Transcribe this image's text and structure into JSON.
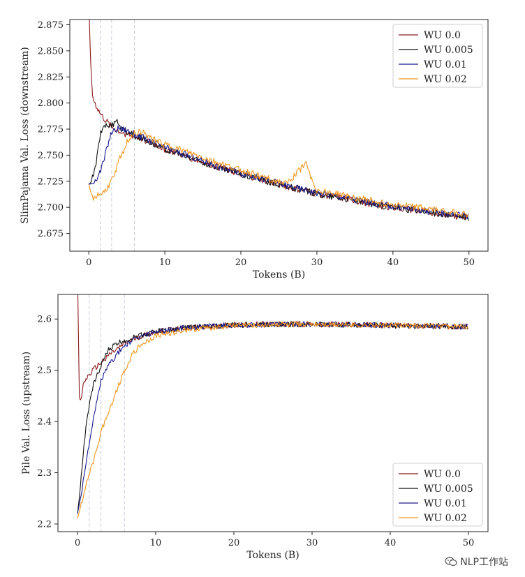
{
  "chart_data": [
    {
      "type": "line",
      "xlabel": "Tokens (B)",
      "ylabel": "SlimPajama Val. Loss (downstream)",
      "xlim": [
        -2.5,
        52.5
      ],
      "ylim": [
        2.658,
        2.88
      ],
      "xticks": [
        0,
        10,
        20,
        30,
        40,
        50
      ],
      "yticks": [
        2.675,
        2.7,
        2.725,
        2.75,
        2.775,
        2.8,
        2.825,
        2.85,
        2.875
      ],
      "ytick_labels": [
        "2.675",
        "2.700",
        "2.725",
        "2.750",
        "2.775",
        "2.800",
        "2.825",
        "2.850",
        "2.875"
      ],
      "warmup_end_lines": [
        1.5,
        3.0,
        6.0
      ],
      "legend_position": "top-right",
      "series": [
        {
          "name": "WU 0.0",
          "color": "#8b1a1a",
          "x": [
            0,
            0.2,
            0.5,
            1,
            1.5,
            2,
            3,
            4,
            5,
            6,
            8,
            10,
            14,
            18,
            22,
            26,
            30,
            34,
            38,
            42,
            46,
            50
          ],
          "y": [
            2.9,
            2.845,
            2.805,
            2.797,
            2.79,
            2.785,
            2.777,
            2.773,
            2.77,
            2.768,
            2.763,
            2.756,
            2.746,
            2.736,
            2.728,
            2.72,
            2.713,
            2.708,
            2.702,
            2.698,
            2.694,
            2.69
          ]
        },
        {
          "name": "WU 0.005",
          "color": "#111111",
          "x": [
            0,
            0.3,
            0.7,
            1,
            1.5,
            2,
            3,
            3.7,
            4,
            5,
            6,
            8,
            10,
            14,
            18,
            22,
            26,
            30,
            34,
            38,
            42,
            46,
            50
          ],
          "y": [
            2.722,
            2.724,
            2.733,
            2.745,
            2.77,
            2.78,
            2.777,
            2.786,
            2.776,
            2.773,
            2.769,
            2.763,
            2.756,
            2.746,
            2.736,
            2.728,
            2.72,
            2.713,
            2.708,
            2.702,
            2.698,
            2.694,
            2.69
          ]
        },
        {
          "name": "WU 0.01",
          "color": "#1a1a8c",
          "x": [
            0,
            0.5,
            1,
            1.5,
            2,
            2.5,
            3,
            4,
            5,
            6,
            8,
            10,
            14,
            18,
            22,
            26,
            30,
            34,
            38,
            42,
            46,
            50
          ],
          "y": [
            2.722,
            2.723,
            2.728,
            2.734,
            2.745,
            2.76,
            2.772,
            2.776,
            2.774,
            2.77,
            2.764,
            2.757,
            2.747,
            2.737,
            2.729,
            2.721,
            2.714,
            2.709,
            2.703,
            2.699,
            2.695,
            2.692
          ]
        },
        {
          "name": "WU 0.02",
          "color": "#f0961e",
          "x": [
            0,
            0.5,
            1,
            2,
            3,
            4,
            5,
            6,
            7,
            8,
            10,
            14,
            18,
            22,
            26,
            28.5,
            30,
            34,
            38,
            42,
            46,
            50
          ],
          "y": [
            2.722,
            2.708,
            2.711,
            2.714,
            2.725,
            2.745,
            2.762,
            2.772,
            2.772,
            2.767,
            2.76,
            2.75,
            2.74,
            2.731,
            2.722,
            2.742,
            2.716,
            2.711,
            2.705,
            2.701,
            2.697,
            2.693
          ]
        }
      ]
    },
    {
      "type": "line",
      "xlabel": "Tokens (B)",
      "ylabel": "Pile Val. Loss (upstream)",
      "xlim": [
        -2.5,
        52.5
      ],
      "ylim": [
        2.185,
        2.648
      ],
      "xticks": [
        0,
        10,
        20,
        30,
        40,
        50
      ],
      "yticks": [
        2.2,
        2.3,
        2.4,
        2.5,
        2.6
      ],
      "ytick_labels": [
        "2.2",
        "2.3",
        "2.4",
        "2.5",
        "2.6"
      ],
      "warmup_end_lines": [
        1.5,
        3.0,
        6.0
      ],
      "legend_position": "bottom-right",
      "series": [
        {
          "name": "WU 0.0",
          "color": "#8b1a1a",
          "x": [
            0,
            0.1,
            0.2,
            0.4,
            0.8,
            1.2,
            2,
            3,
            4,
            5,
            6,
            8,
            10,
            14,
            18,
            22,
            26,
            30,
            34,
            38,
            42,
            46,
            50
          ],
          "y": [
            2.7,
            2.6,
            2.45,
            2.44,
            2.475,
            2.485,
            2.5,
            2.515,
            2.53,
            2.54,
            2.552,
            2.566,
            2.575,
            2.583,
            2.587,
            2.589,
            2.59,
            2.59,
            2.589,
            2.588,
            2.587,
            2.586,
            2.585
          ]
        },
        {
          "name": "WU 0.005",
          "color": "#111111",
          "x": [
            0,
            0.3,
            0.8,
            1.2,
            1.5,
            2,
            2.5,
            3,
            4,
            5,
            6,
            8,
            10,
            14,
            18,
            22,
            26,
            30,
            34,
            38,
            42,
            46,
            50
          ],
          "y": [
            2.22,
            2.26,
            2.35,
            2.4,
            2.43,
            2.47,
            2.49,
            2.51,
            2.54,
            2.552,
            2.558,
            2.568,
            2.576,
            2.583,
            2.587,
            2.589,
            2.59,
            2.59,
            2.589,
            2.588,
            2.587,
            2.586,
            2.585
          ]
        },
        {
          "name": "WU 0.01",
          "color": "#1a1a8c",
          "x": [
            0,
            0.5,
            1,
            1.5,
            2,
            3,
            4,
            5,
            6,
            8,
            10,
            14,
            18,
            22,
            26,
            30,
            34,
            38,
            42,
            46,
            50
          ],
          "y": [
            2.22,
            2.26,
            2.31,
            2.36,
            2.4,
            2.48,
            2.51,
            2.53,
            2.548,
            2.565,
            2.575,
            2.583,
            2.587,
            2.589,
            2.59,
            2.59,
            2.589,
            2.588,
            2.587,
            2.586,
            2.585
          ]
        },
        {
          "name": "WU 0.02",
          "color": "#f0961e",
          "x": [
            0,
            0.5,
            1,
            2,
            3,
            4,
            5,
            6,
            7,
            8,
            10,
            14,
            18,
            22,
            26,
            30,
            34,
            38,
            42,
            46,
            50
          ],
          "y": [
            2.21,
            2.24,
            2.27,
            2.32,
            2.38,
            2.42,
            2.46,
            2.5,
            2.53,
            2.548,
            2.567,
            2.579,
            2.585,
            2.588,
            2.589,
            2.59,
            2.589,
            2.588,
            2.587,
            2.586,
            2.585
          ]
        }
      ]
    }
  ],
  "watermark": {
    "text": "NLP工作站",
    "icon": "wechat-icon"
  }
}
